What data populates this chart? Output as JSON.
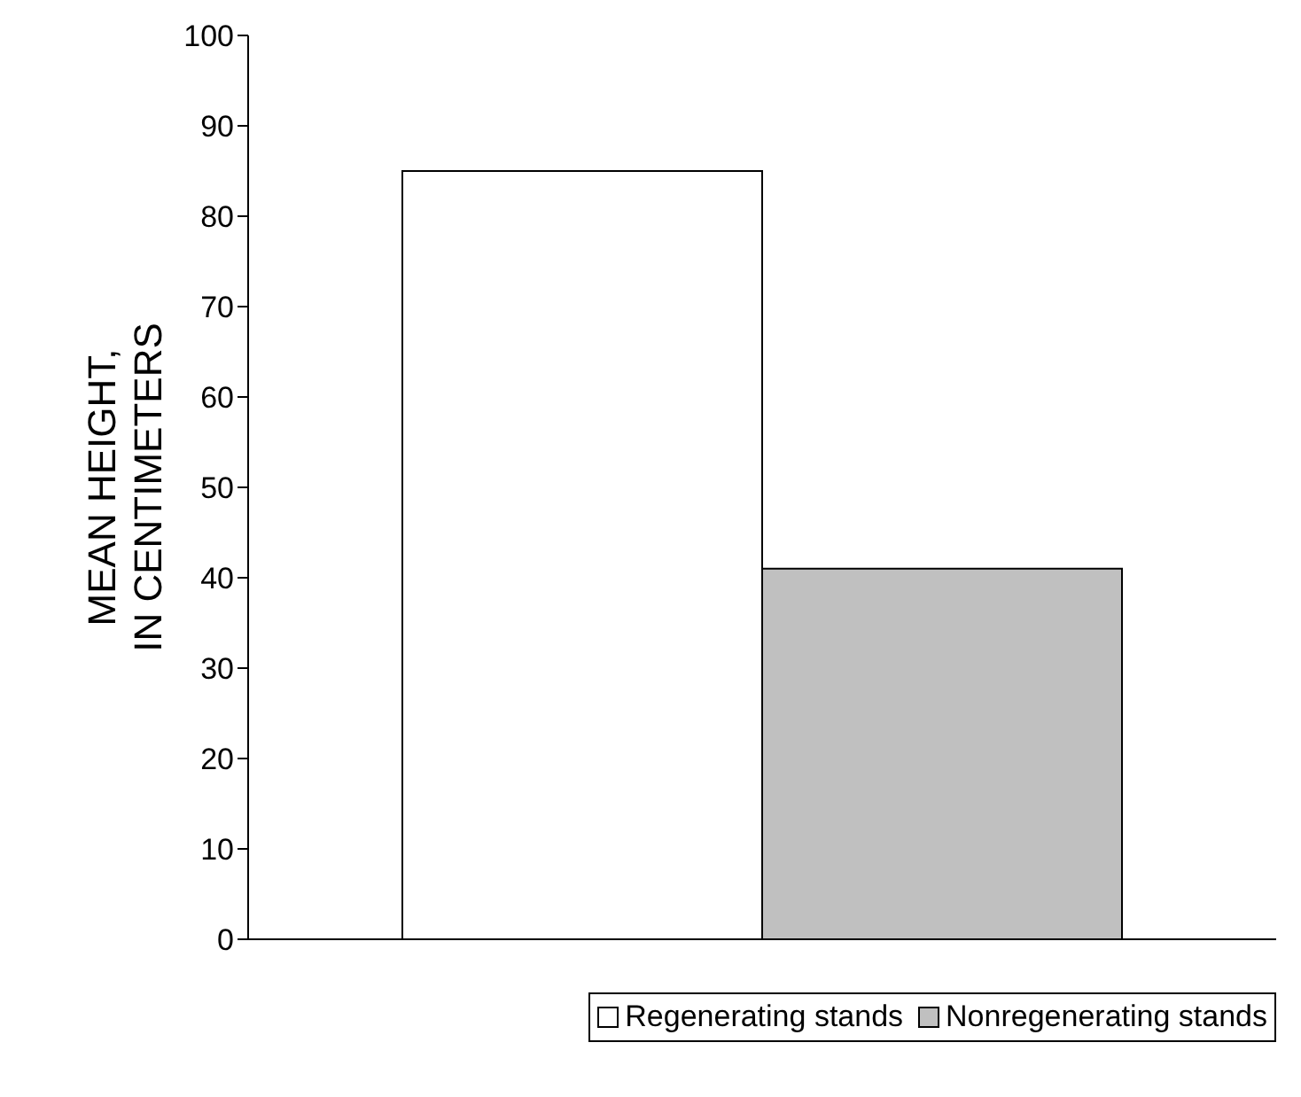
{
  "chart_data": {
    "type": "bar",
    "ylabel": "MEAN HEIGHT, IN CENTIMETERS",
    "categories": [
      null
    ],
    "series": [
      {
        "name": "Regenerating stands",
        "color": "#ffffff",
        "values": [
          85
        ]
      },
      {
        "name": "Nonregenerating stands",
        "color": "#c0c0c0",
        "values": [
          41
        ]
      }
    ],
    "ylim": [
      0,
      100
    ],
    "yticks": [
      0,
      10,
      20,
      30,
      40,
      50,
      60,
      70,
      80,
      90,
      100
    ],
    "grid": false,
    "legend": "bottom right"
  }
}
